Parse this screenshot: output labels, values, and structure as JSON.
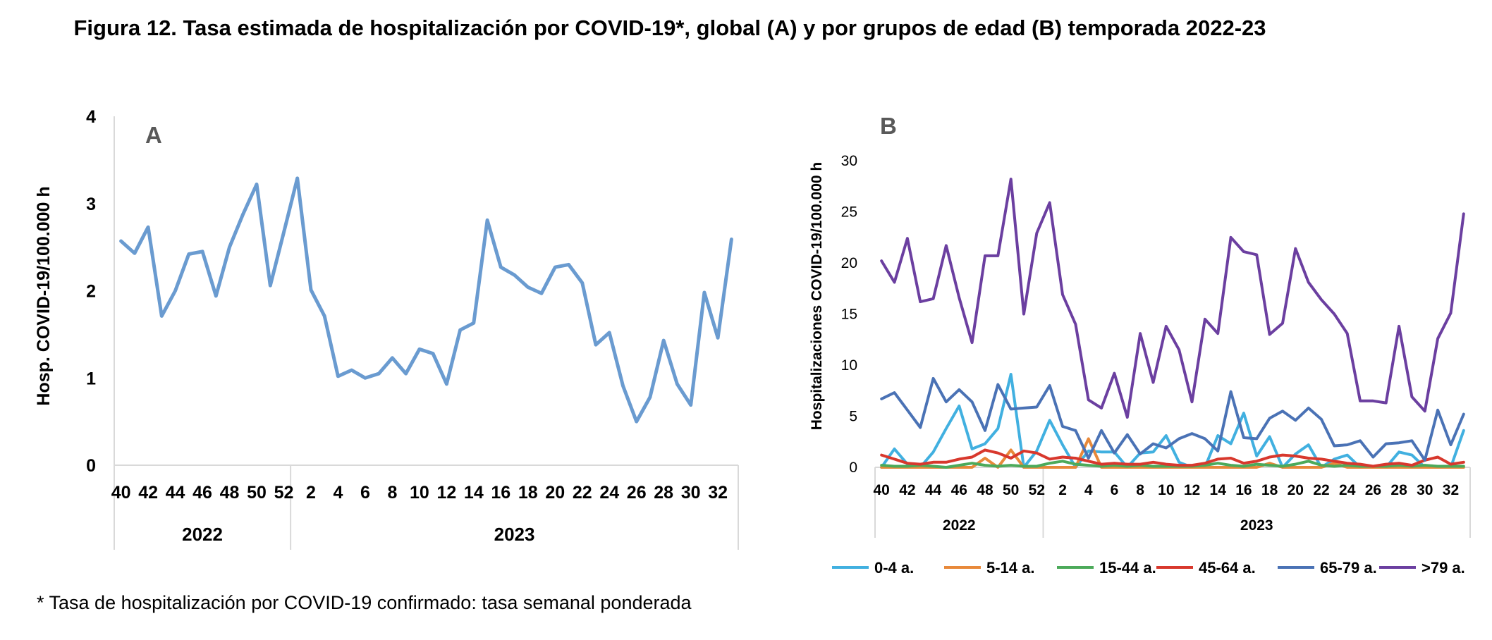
{
  "title": "Figura 12. Tasa estimada de hospitalización por COVID-19*, global (A) y por grupos de edad (B) temporada 2022-23",
  "footnote": "* Tasa de hospitalización por COVID-19 confirmado: tasa semanal ponderada",
  "chart_data": [
    {
      "type": "line",
      "panel_label": "A",
      "ylabel": "Hosp. COVID-19/100.000 h",
      "ylim": [
        0,
        4
      ],
      "yticks": [
        "0",
        "1",
        "2",
        "3",
        "4"
      ],
      "xtick_labels": [
        "40",
        "42",
        "44",
        "46",
        "48",
        "50",
        "52",
        "2",
        "4",
        "6",
        "8",
        "10",
        "12",
        "14",
        "16",
        "18",
        "20",
        "22",
        "24",
        "26",
        "28",
        "30",
        "32"
      ],
      "year_groups": [
        {
          "label": "2022",
          "weeks": 13
        },
        {
          "label": "2023",
          "weeks": 33
        }
      ],
      "weeks": [
        "40",
        "41",
        "42",
        "43",
        "44",
        "45",
        "46",
        "47",
        "48",
        "49",
        "50",
        "51",
        "52",
        "1",
        "2",
        "3",
        "4",
        "5",
        "6",
        "7",
        "8",
        "9",
        "10",
        "11",
        "12",
        "13",
        "14",
        "15",
        "16",
        "17",
        "18",
        "19",
        "20",
        "21",
        "22",
        "23",
        "24",
        "25",
        "26",
        "27",
        "28",
        "29",
        "30",
        "31",
        "32",
        "33"
      ],
      "series": [
        {
          "color": "#6a9bd0",
          "values": [
            2.57,
            2.43,
            2.73,
            1.71,
            2.0,
            2.42,
            2.45,
            1.94,
            2.5,
            2.88,
            3.22,
            2.06,
            2.67,
            3.29,
            2.01,
            1.71,
            1.02,
            1.09,
            1.0,
            1.05,
            1.23,
            1.05,
            1.33,
            1.28,
            0.93,
            1.55,
            1.63,
            2.81,
            2.27,
            2.18,
            2.04,
            1.97,
            2.27,
            2.3,
            2.09,
            1.38,
            1.52,
            0.91,
            0.5,
            0.78,
            1.43,
            0.93,
            0.69,
            1.98,
            1.46,
            2.59
          ]
        }
      ]
    },
    {
      "type": "line",
      "panel_label": "B",
      "ylabel": "Hospitalizaciones  COVID-19/100.000 h",
      "ylim": [
        0,
        30
      ],
      "yticks": [
        "0",
        "5",
        "10",
        "15",
        "20",
        "25",
        "30"
      ],
      "xtick_labels": [
        "40",
        "42",
        "44",
        "46",
        "48",
        "50",
        "52",
        "2",
        "4",
        "6",
        "8",
        "10",
        "12",
        "14",
        "16",
        "18",
        "20",
        "22",
        "24",
        "26",
        "28",
        "30",
        "32"
      ],
      "year_groups": [
        {
          "label": "2022",
          "weeks": 13
        },
        {
          "label": "2023",
          "weeks": 33
        }
      ],
      "legend_position": "bottom",
      "series": [
        {
          "name": "0-4 a.",
          "color": "#41b0e0",
          "values": [
            0.0,
            1.8,
            0.3,
            0.0,
            1.5,
            3.8,
            6.0,
            1.8,
            2.3,
            3.8,
            9.1,
            0.0,
            1.6,
            4.6,
            2.2,
            0.0,
            1.6,
            1.5,
            1.5,
            0.0,
            1.4,
            1.5,
            3.1,
            0.5,
            0.0,
            0.0,
            3.1,
            2.3,
            5.3,
            1.1,
            3.0,
            0.0,
            1.3,
            2.2,
            0.0,
            0.8,
            1.2,
            0.0,
            0.0,
            0.0,
            1.5,
            1.2,
            0.0,
            0.0,
            0.0,
            3.6
          ]
        },
        {
          "name": "5-14 a.",
          "color": "#e8893a",
          "values": [
            0.0,
            0.0,
            0.0,
            0.0,
            0.0,
            0.0,
            0.0,
            0.0,
            0.9,
            0.0,
            1.7,
            0.0,
            0.0,
            0.0,
            0.0,
            0.0,
            2.8,
            0.0,
            0.0,
            0.0,
            0.0,
            0.0,
            0.0,
            0.0,
            0.0,
            0.0,
            0.0,
            0.0,
            0.0,
            0.0,
            0.4,
            0.0,
            0.0,
            0.0,
            0.0,
            0.4,
            0.0,
            0.0,
            0.0,
            0.0,
            0.0,
            0.0,
            0.0,
            0.0,
            0.0,
            0.0
          ]
        },
        {
          "name": "15-44 a.",
          "color": "#4caa5a",
          "values": [
            0.2,
            0.1,
            0.1,
            0.2,
            0.1,
            0.0,
            0.2,
            0.4,
            0.2,
            0.1,
            0.2,
            0.1,
            0.1,
            0.4,
            0.6,
            0.3,
            0.2,
            0.1,
            0.2,
            0.1,
            0.2,
            0.1,
            0.1,
            0.1,
            0.1,
            0.2,
            0.4,
            0.2,
            0.1,
            0.3,
            0.2,
            0.1,
            0.3,
            0.6,
            0.2,
            0.1,
            0.2,
            0.1,
            0.1,
            0.1,
            0.2,
            0.1,
            0.2,
            0.1,
            0.1,
            0.1
          ]
        },
        {
          "name": "45-64 a.",
          "color": "#d8382d",
          "values": [
            1.2,
            0.8,
            0.4,
            0.3,
            0.5,
            0.5,
            0.8,
            1.0,
            1.7,
            1.4,
            0.9,
            1.6,
            1.4,
            0.8,
            1.0,
            0.9,
            0.6,
            0.3,
            0.4,
            0.3,
            0.3,
            0.5,
            0.3,
            0.2,
            0.2,
            0.4,
            0.8,
            0.9,
            0.4,
            0.6,
            1.0,
            1.2,
            1.1,
            0.9,
            0.8,
            0.6,
            0.4,
            0.3,
            0.1,
            0.3,
            0.4,
            0.2,
            0.7,
            1.0,
            0.3,
            0.5
          ]
        },
        {
          "name": "65-79 a.",
          "color": "#4a72b5",
          "values": [
            6.7,
            7.3,
            5.6,
            3.9,
            8.7,
            6.4,
            7.6,
            6.4,
            3.6,
            8.1,
            5.7,
            5.8,
            5.9,
            8.0,
            4.0,
            3.6,
            0.9,
            3.6,
            1.4,
            3.2,
            1.3,
            2.3,
            1.9,
            2.8,
            3.3,
            2.8,
            1.6,
            7.4,
            2.9,
            2.8,
            4.8,
            5.5,
            4.6,
            5.8,
            4.7,
            2.1,
            2.2,
            2.6,
            1.0,
            2.3,
            2.4,
            2.6,
            0.7,
            5.6,
            2.2,
            5.2
          ]
        },
        {
          "name": ">79 a.",
          "color": "#6b3fa0",
          "values": [
            20.2,
            18.1,
            22.4,
            16.2,
            16.5,
            21.7,
            16.6,
            12.2,
            20.7,
            20.7,
            28.2,
            15.0,
            22.9,
            25.9,
            16.9,
            14.0,
            6.6,
            5.8,
            9.2,
            4.9,
            13.1,
            8.3,
            13.8,
            11.5,
            6.4,
            14.5,
            13.1,
            22.5,
            21.1,
            20.8,
            13.0,
            14.1,
            21.4,
            18.1,
            16.4,
            15.0,
            13.1,
            6.5,
            6.5,
            6.3,
            13.8,
            6.9,
            5.5,
            12.6,
            15.1,
            24.8
          ]
        }
      ]
    }
  ]
}
